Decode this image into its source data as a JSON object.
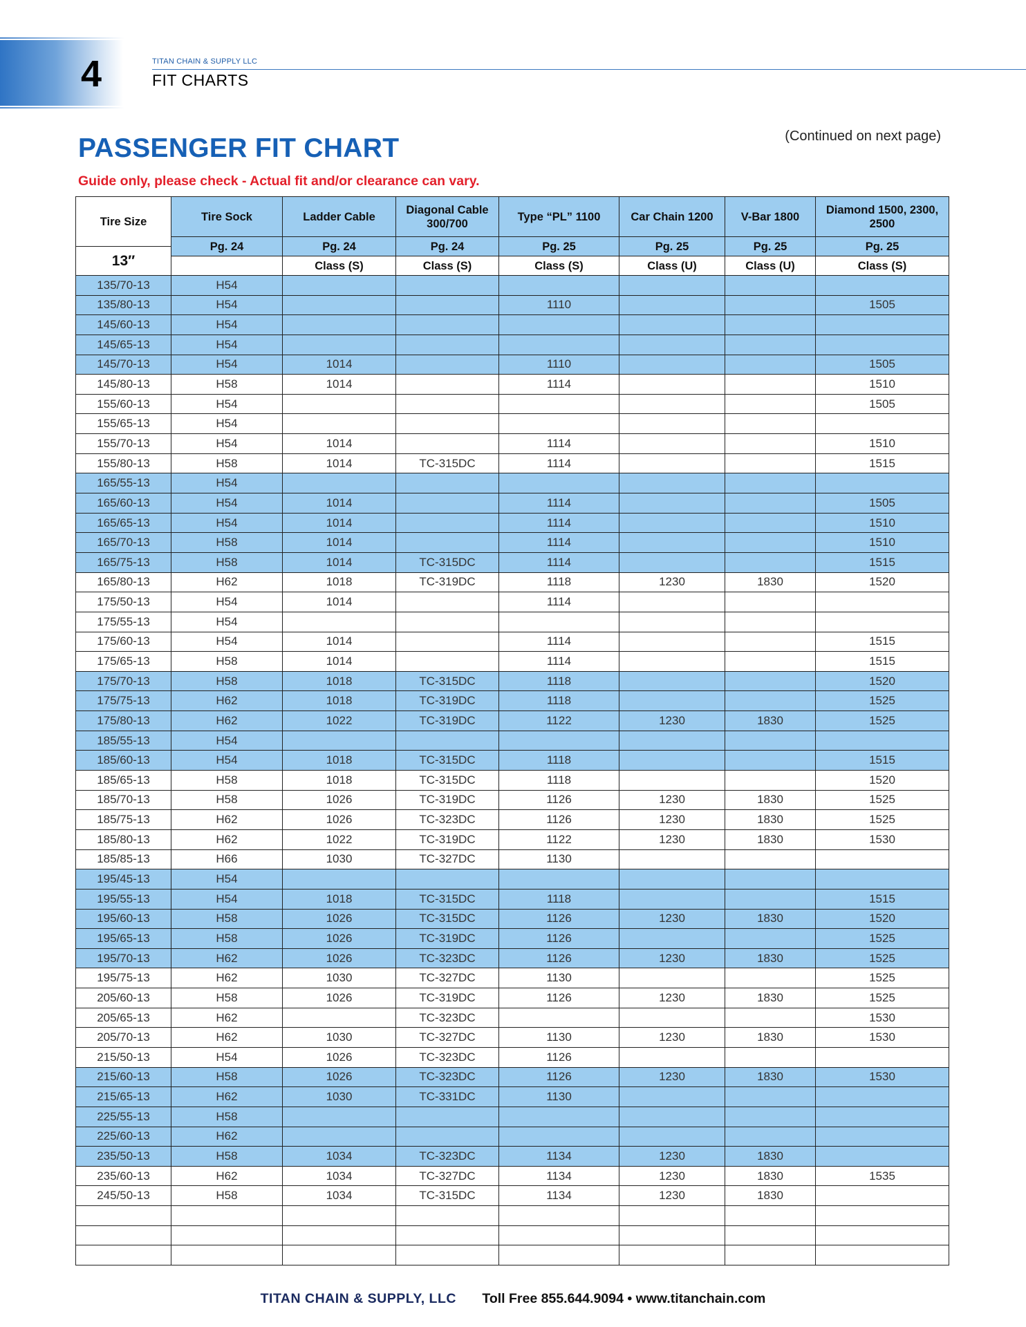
{
  "header": {
    "chapter_number": "4",
    "company": "TITAN CHAIN & SUPPLY LLC",
    "section": "FIT CHARTS"
  },
  "title": "PASSENGER FIT CHART",
  "continued_note": "(Continued on next page)",
  "disclaimer": "Guide only, please check  - Actual fit and/or clearance can vary.",
  "colors": {
    "accent_blue": "#1660b5",
    "row_blue": "#9dcdf0",
    "warning_red": "#e3202b"
  },
  "table": {
    "first_header": "Tire Size",
    "rim_size": "13″",
    "columns": [
      {
        "name": "Tire Sock",
        "page": "Pg. 24",
        "class": ""
      },
      {
        "name": "Ladder Cable",
        "page": "Pg. 24",
        "class": "Class (S)"
      },
      {
        "name": "Diagonal Cable 300/700",
        "page": "Pg. 24",
        "class": "Class (S)"
      },
      {
        "name": "Type “PL” 1100",
        "page": "Pg. 25",
        "class": "Class (S)"
      },
      {
        "name": "Car Chain 1200",
        "page": "Pg. 25",
        "class": "Class (U)"
      },
      {
        "name": "V-Bar 1800",
        "page": "Pg. 25",
        "class": "Class (U)"
      },
      {
        "name": "Diamond 1500, 2300, 2500",
        "page": "Pg. 25",
        "class": "Class (S)"
      }
    ],
    "rows": [
      [
        "135/70-13",
        "H54",
        "",
        "",
        "",
        "",
        "",
        ""
      ],
      [
        "135/80-13",
        "H54",
        "",
        "",
        "1110",
        "",
        "",
        "1505"
      ],
      [
        "145/60-13",
        "H54",
        "",
        "",
        "",
        "",
        "",
        ""
      ],
      [
        "145/65-13",
        "H54",
        "",
        "",
        "",
        "",
        "",
        ""
      ],
      [
        "145/70-13",
        "H54",
        "1014",
        "",
        "1110",
        "",
        "",
        "1505"
      ],
      [
        "145/80-13",
        "H58",
        "1014",
        "",
        "1114",
        "",
        "",
        "1510"
      ],
      [
        "155/60-13",
        "H54",
        "",
        "",
        "",
        "",
        "",
        "1505"
      ],
      [
        "155/65-13",
        "H54",
        "",
        "",
        "",
        "",
        "",
        ""
      ],
      [
        "155/70-13",
        "H54",
        "1014",
        "",
        "1114",
        "",
        "",
        "1510"
      ],
      [
        "155/80-13",
        "H58",
        "1014",
        "TC-315DC",
        "1114",
        "",
        "",
        "1515"
      ],
      [
        "165/55-13",
        "H54",
        "",
        "",
        "",
        "",
        "",
        ""
      ],
      [
        "165/60-13",
        "H54",
        "1014",
        "",
        "1114",
        "",
        "",
        "1505"
      ],
      [
        "165/65-13",
        "H54",
        "1014",
        "",
        "1114",
        "",
        "",
        "1510"
      ],
      [
        "165/70-13",
        "H58",
        "1014",
        "",
        "1114",
        "",
        "",
        "1510"
      ],
      [
        "165/75-13",
        "H58",
        "1014",
        "TC-315DC",
        "1114",
        "",
        "",
        "1515"
      ],
      [
        "165/80-13",
        "H62",
        "1018",
        "TC-319DC",
        "1118",
        "1230",
        "1830",
        "1520"
      ],
      [
        "175/50-13",
        "H54",
        "1014",
        "",
        "1114",
        "",
        "",
        ""
      ],
      [
        "175/55-13",
        "H54",
        "",
        "",
        "",
        "",
        "",
        ""
      ],
      [
        "175/60-13",
        "H54",
        "1014",
        "",
        "1114",
        "",
        "",
        "1515"
      ],
      [
        "175/65-13",
        "H58",
        "1014",
        "",
        "1114",
        "",
        "",
        "1515"
      ],
      [
        "175/70-13",
        "H58",
        "1018",
        "TC-315DC",
        "1118",
        "",
        "",
        "1520"
      ],
      [
        "175/75-13",
        "H62",
        "1018",
        "TC-319DC",
        "1118",
        "",
        "",
        "1525"
      ],
      [
        "175/80-13",
        "H62",
        "1022",
        "TC-319DC",
        "1122",
        "1230",
        "1830",
        "1525"
      ],
      [
        "185/55-13",
        "H54",
        "",
        "",
        "",
        "",
        "",
        ""
      ],
      [
        "185/60-13",
        "H54",
        "1018",
        "TC-315DC",
        "1118",
        "",
        "",
        "1515"
      ],
      [
        "185/65-13",
        "H58",
        "1018",
        "TC-315DC",
        "1118",
        "",
        "",
        "1520"
      ],
      [
        "185/70-13",
        "H58",
        "1026",
        "TC-319DC",
        "1126",
        "1230",
        "1830",
        "1525"
      ],
      [
        "185/75-13",
        "H62",
        "1026",
        "TC-323DC",
        "1126",
        "1230",
        "1830",
        "1525"
      ],
      [
        "185/80-13",
        "H62",
        "1022",
        "TC-319DC",
        "1122",
        "1230",
        "1830",
        "1530"
      ],
      [
        "185/85-13",
        "H66",
        "1030",
        "TC-327DC",
        "1130",
        "",
        "",
        ""
      ],
      [
        "195/45-13",
        "H54",
        "",
        "",
        "",
        "",
        "",
        ""
      ],
      [
        "195/55-13",
        "H54",
        "1018",
        "TC-315DC",
        "1118",
        "",
        "",
        "1515"
      ],
      [
        "195/60-13",
        "H58",
        "1026",
        "TC-315DC",
        "1126",
        "1230",
        "1830",
        "1520"
      ],
      [
        "195/65-13",
        "H58",
        "1026",
        "TC-319DC",
        "1126",
        "",
        "",
        "1525"
      ],
      [
        "195/70-13",
        "H62",
        "1026",
        "TC-323DC",
        "1126",
        "1230",
        "1830",
        "1525"
      ],
      [
        "195/75-13",
        "H62",
        "1030",
        "TC-327DC",
        "1130",
        "",
        "",
        "1525"
      ],
      [
        "205/60-13",
        "H58",
        "1026",
        "TC-319DC",
        "1126",
        "1230",
        "1830",
        "1525"
      ],
      [
        "205/65-13",
        "H62",
        "",
        "TC-323DC",
        "",
        "",
        "",
        "1530"
      ],
      [
        "205/70-13",
        "H62",
        "1030",
        "TC-327DC",
        "1130",
        "1230",
        "1830",
        "1530"
      ],
      [
        "215/50-13",
        "H54",
        "1026",
        "TC-323DC",
        "1126",
        "",
        "",
        ""
      ],
      [
        "215/60-13",
        "H58",
        "1026",
        "TC-323DC",
        "1126",
        "1230",
        "1830",
        "1530"
      ],
      [
        "215/65-13",
        "H62",
        "1030",
        "TC-331DC",
        "1130",
        "",
        "",
        ""
      ],
      [
        "225/55-13",
        "H58",
        "",
        "",
        "",
        "",
        "",
        ""
      ],
      [
        "225/60-13",
        "H62",
        "",
        "",
        "",
        "",
        "",
        ""
      ],
      [
        "235/50-13",
        "H58",
        "1034",
        "TC-323DC",
        "1134",
        "1230",
        "1830",
        ""
      ],
      [
        "235/60-13",
        "H62",
        "1034",
        "TC-327DC",
        "1134",
        "1230",
        "1830",
        "1535"
      ],
      [
        "245/50-13",
        "H58",
        "1034",
        "TC-315DC",
        "1134",
        "1230",
        "1830",
        ""
      ],
      [
        "",
        "",
        "",
        "",
        "",
        "",
        "",
        ""
      ],
      [
        "",
        "",
        "",
        "",
        "",
        "",
        "",
        ""
      ],
      [
        "",
        "",
        "",
        "",
        "",
        "",
        "",
        ""
      ]
    ]
  },
  "footer": {
    "company": "TITAN CHAIN & SUPPLY, LLC",
    "contact": "Toll Free 855.644.9094 • www.titanchain.com"
  }
}
